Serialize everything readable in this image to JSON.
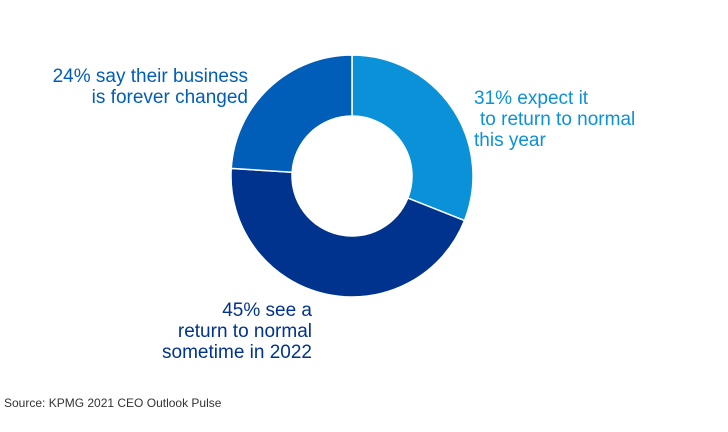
{
  "chart_data": {
    "type": "pie",
    "donut": true,
    "start_angle_deg": 0,
    "slices": [
      {
        "value": 31,
        "label_lines": [
          "31% expect it",
          "to return to normal",
          "this year"
        ],
        "color": "#0b91d8"
      },
      {
        "value": 45,
        "label_lines": [
          "45% see a",
          "return to normal",
          "sometime in 2022"
        ],
        "color": "#00338d"
      },
      {
        "value": 24,
        "label_lines": [
          "24% say their business",
          "is forever changed"
        ],
        "color": "#005eb8"
      }
    ],
    "legend": "none",
    "grid": false
  },
  "source": "Source: KPMG 2021 CEO Outlook Pulse"
}
